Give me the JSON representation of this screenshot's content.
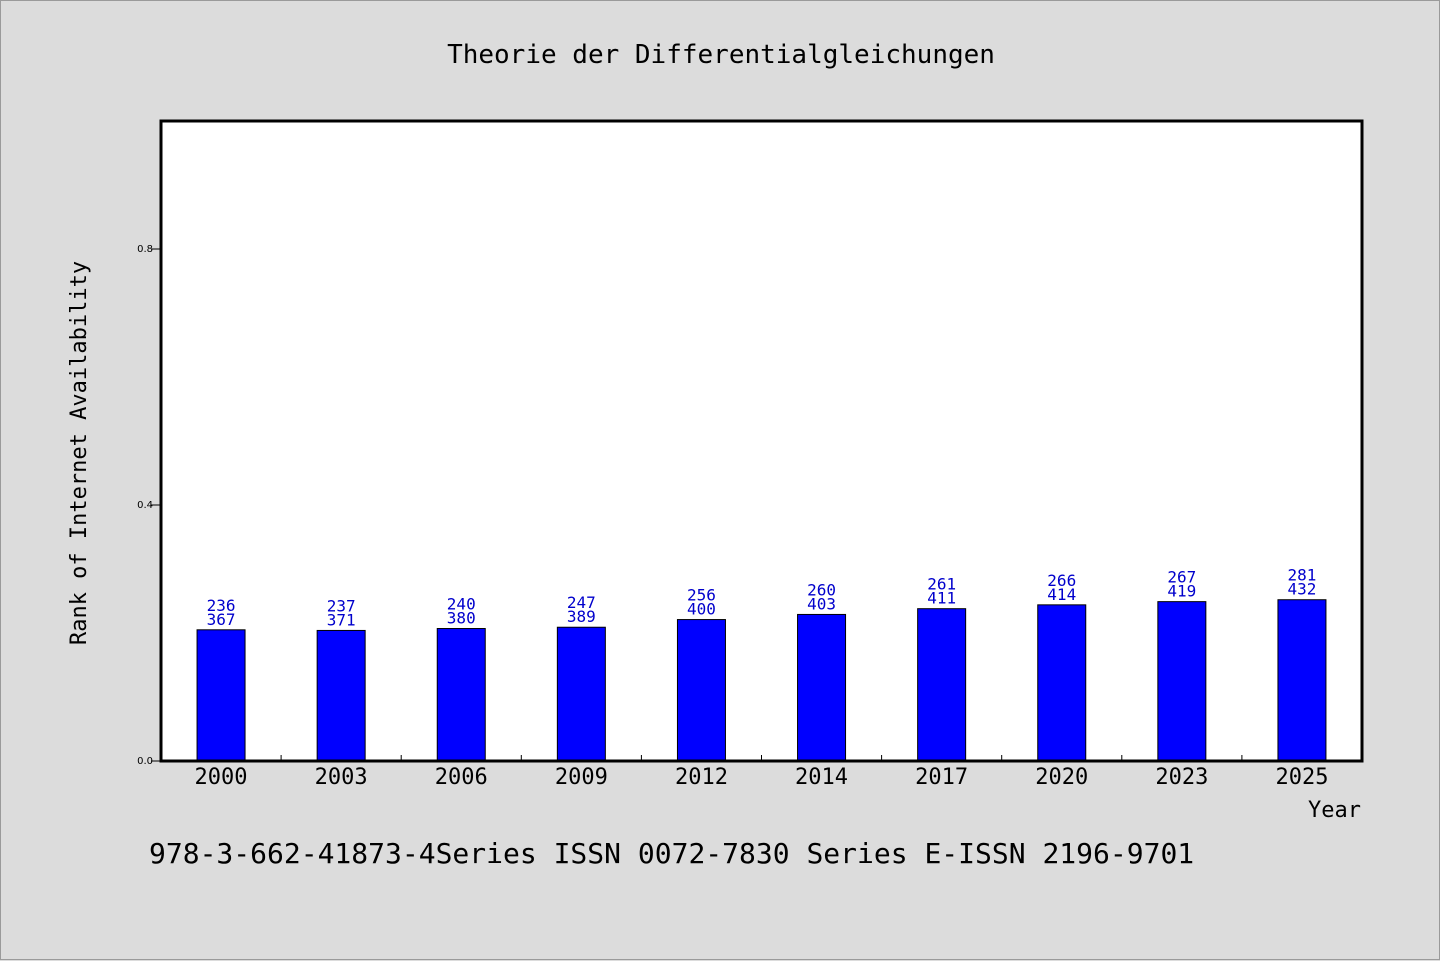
{
  "chart_data": {
    "type": "bar",
    "title": "Theorie der Differentialgleichungen",
    "xlabel": "Year",
    "ylabel": "Rank of Internet Availability",
    "ylim": [
      0,
      1
    ],
    "yticks": [
      "0.0",
      "0.4",
      "0.8"
    ],
    "ytick_values": [
      0,
      0.4,
      0.8
    ],
    "categories": [
      "2000",
      "2003",
      "2006",
      "2009",
      "2012",
      "2014",
      "2017",
      "2020",
      "2023",
      "2025"
    ],
    "values": [
      0.205,
      0.204,
      0.207,
      0.209,
      0.221,
      0.229,
      0.238,
      0.244,
      0.249,
      0.252
    ],
    "labels_top": [
      "236",
      "237",
      "240",
      "247",
      "256",
      "260",
      "261",
      "266",
      "267",
      "281"
    ],
    "labels_bottom": [
      "367",
      "371",
      "380",
      "389",
      "400",
      "403",
      "411",
      "414",
      "419",
      "432"
    ],
    "bar_color": "#0000ff",
    "label_color": "#0000cc",
    "grid": false,
    "legend": "none"
  },
  "footer": "978-3-662-41873-4Series ISSN 0072-7830 Series E-ISSN 2196-9701"
}
